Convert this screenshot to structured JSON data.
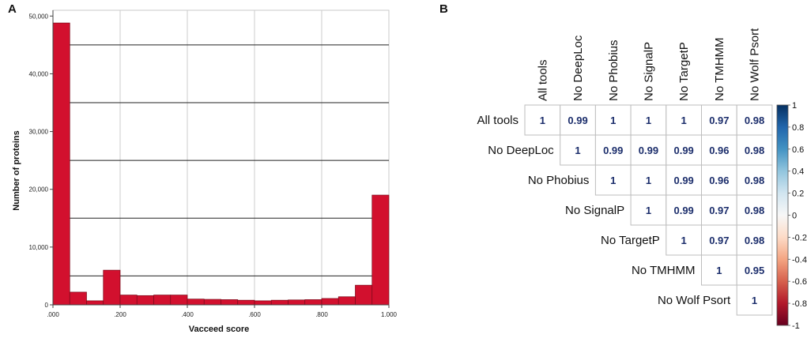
{
  "panels": {
    "a_letter": "A",
    "b_letter": "B"
  },
  "chart_data": [
    {
      "type": "bar",
      "panel": "A",
      "xlabel": "Vacceed score",
      "ylabel": "Number of proteins",
      "x_ticks": [
        ".000",
        ".200",
        ".400",
        ".600",
        ".800",
        "1.000"
      ],
      "y_ticks": [
        "0",
        "10,000",
        "20,000",
        "30,000",
        "40,000",
        "50,000"
      ],
      "xlim": [
        0,
        1
      ],
      "ylim": [
        0,
        51000
      ],
      "bin_width": 0.05,
      "bin_starts": [
        0,
        0.05,
        0.1,
        0.15,
        0.2,
        0.25,
        0.3,
        0.35,
        0.4,
        0.45,
        0.5,
        0.55,
        0.6,
        0.65,
        0.7,
        0.75,
        0.8,
        0.85,
        0.9,
        0.95
      ],
      "values": [
        48800,
        2200,
        700,
        6000,
        1700,
        1600,
        1700,
        1700,
        1000,
        950,
        900,
        800,
        700,
        800,
        850,
        900,
        1100,
        1400,
        3400,
        19000
      ],
      "reference_lines": [
        5000,
        15000,
        25000,
        35000,
        45000
      ],
      "bar_color": "#d2102e",
      "grid": "vertical"
    },
    {
      "type": "heatmap",
      "panel": "B",
      "columns": [
        "All tools",
        "No DeepLoc",
        "No Phobius",
        "No SignalP",
        "No TargetP",
        "No TMHMM",
        "No Wolf Psort"
      ],
      "rows": [
        "All tools",
        "No DeepLoc",
        "No Phobius",
        "No SignalP",
        "No TargetP",
        "No TMHMM",
        "No Wolf Psort"
      ],
      "matrix": [
        [
          1,
          0.99,
          1,
          1,
          1,
          0.97,
          0.98
        ],
        [
          null,
          1,
          0.99,
          0.99,
          0.99,
          0.96,
          0.98
        ],
        [
          null,
          null,
          1,
          1,
          0.99,
          0.96,
          0.98
        ],
        [
          null,
          null,
          null,
          1,
          0.99,
          0.97,
          0.98
        ],
        [
          null,
          null,
          null,
          null,
          1,
          0.97,
          0.98
        ],
        [
          null,
          null,
          null,
          null,
          null,
          1,
          0.95
        ],
        [
          null,
          null,
          null,
          null,
          null,
          null,
          1
        ]
      ],
      "colorbar": {
        "ticks": [
          "1",
          "0.8",
          "0.6",
          "0.4",
          "0.2",
          "0",
          "-0.2",
          "-0.4",
          "-0.6",
          "-0.8",
          "-1"
        ],
        "range": [
          -1,
          1
        ],
        "colors": [
          "#67001f",
          "#b2182b",
          "#d6604d",
          "#f4a582",
          "#fddbc7",
          "#f7f7f7",
          "#d1e5f0",
          "#92c5de",
          "#4393c3",
          "#2166ac",
          "#053061"
        ]
      },
      "value_color": "#1b2d6b"
    }
  ]
}
